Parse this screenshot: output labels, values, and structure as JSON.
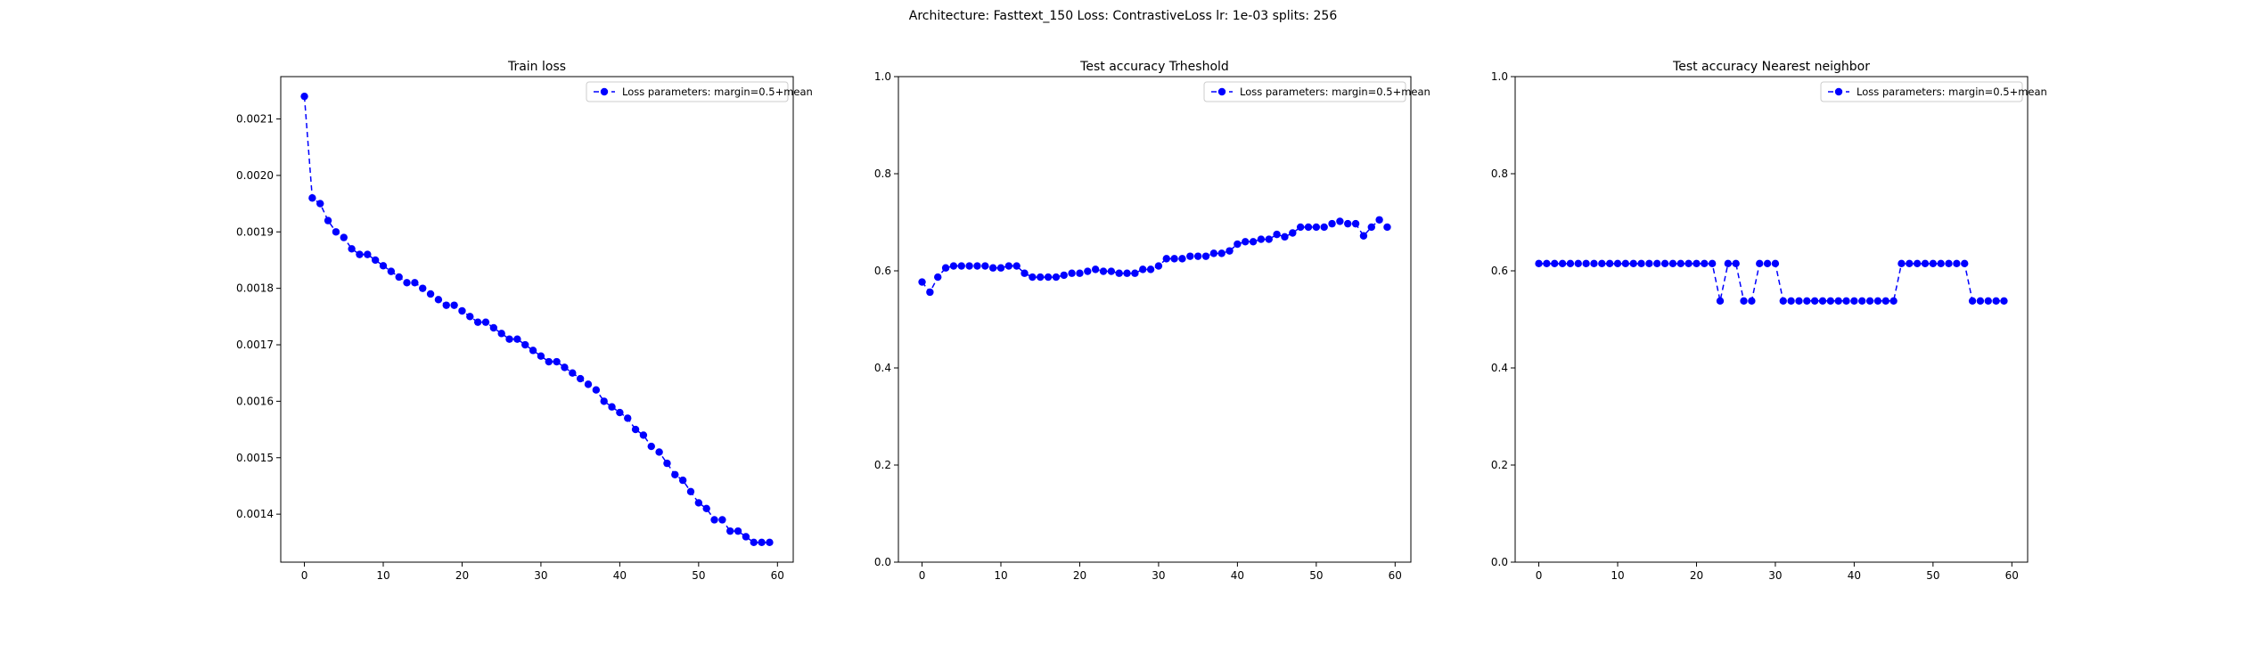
{
  "figure": {
    "suptitle": "Architecture: Fasttext_150 Loss: ContrastiveLoss lr: 1e-03 splits: 256"
  },
  "chart_data": [
    {
      "type": "line",
      "title": "Train loss",
      "xlabel": "",
      "ylabel": "",
      "xlim": [
        -3,
        62
      ],
      "ylim": [
        0.001315,
        0.002175
      ],
      "xticks": [
        0,
        10,
        20,
        30,
        40,
        50,
        60
      ],
      "yticks": [
        0.0014,
        0.0015,
        0.0016,
        0.0017,
        0.0018,
        0.0019,
        0.002,
        0.0021
      ],
      "ytick_labels": [
        "0.0014",
        "0.0015",
        "0.0016",
        "0.0017",
        "0.0018",
        "0.0019",
        "0.0020",
        "0.0021"
      ],
      "grid": false,
      "legend_position": "top-right",
      "series": [
        {
          "name": "Loss parameters: margin=0.5+mean",
          "color": "#0000ff",
          "linestyle": "dashed",
          "marker": "circle",
          "x": [
            0,
            1,
            2,
            3,
            4,
            5,
            6,
            7,
            8,
            9,
            10,
            11,
            12,
            13,
            14,
            15,
            16,
            17,
            18,
            19,
            20,
            21,
            22,
            23,
            24,
            25,
            26,
            27,
            28,
            29,
            30,
            31,
            32,
            33,
            34,
            35,
            36,
            37,
            38,
            39,
            40,
            41,
            42,
            43,
            44,
            45,
            46,
            47,
            48,
            49,
            50,
            51,
            52,
            53,
            54,
            55,
            56,
            57,
            58,
            59
          ],
          "values": [
            0.00214,
            0.00196,
            0.00195,
            0.00192,
            0.0019,
            0.00189,
            0.00187,
            0.00186,
            0.00186,
            0.00185,
            0.00184,
            0.00183,
            0.00182,
            0.00181,
            0.00181,
            0.0018,
            0.00179,
            0.00178,
            0.00177,
            0.00177,
            0.00176,
            0.00175,
            0.00174,
            0.00174,
            0.00173,
            0.00172,
            0.00171,
            0.00171,
            0.0017,
            0.00169,
            0.00168,
            0.00167,
            0.00167,
            0.00166,
            0.00165,
            0.00164,
            0.00163,
            0.00162,
            0.0016,
            0.00159,
            0.00158,
            0.00157,
            0.00155,
            0.00154,
            0.00152,
            0.00151,
            0.00149,
            0.00147,
            0.00146,
            0.00144,
            0.00142,
            0.00141,
            0.00139,
            0.00139,
            0.00137,
            0.00137,
            0.00136,
            0.00135,
            0.00135,
            0.00135
          ]
        }
      ]
    },
    {
      "type": "line",
      "title": "Test accuracy Trheshold",
      "xlabel": "",
      "ylabel": "",
      "xlim": [
        -3,
        62
      ],
      "ylim": [
        0.0,
        1.0
      ],
      "xticks": [
        0,
        10,
        20,
        30,
        40,
        50,
        60
      ],
      "yticks": [
        0.0,
        0.2,
        0.4,
        0.6,
        0.8,
        1.0
      ],
      "ytick_labels": [
        "0.0",
        "0.2",
        "0.4",
        "0.6",
        "0.8",
        "1.0"
      ],
      "grid": false,
      "legend_position": "top-right",
      "series": [
        {
          "name": "Loss parameters: margin=0.5+mean",
          "color": "#0000ff",
          "linestyle": "dashed",
          "marker": "circle",
          "x": [
            0,
            1,
            2,
            3,
            4,
            5,
            6,
            7,
            8,
            9,
            10,
            11,
            12,
            13,
            14,
            15,
            16,
            17,
            18,
            19,
            20,
            21,
            22,
            23,
            24,
            25,
            26,
            27,
            28,
            29,
            30,
            31,
            32,
            33,
            34,
            35,
            36,
            37,
            38,
            39,
            40,
            41,
            42,
            43,
            44,
            45,
            46,
            47,
            48,
            49,
            50,
            51,
            52,
            53,
            54,
            55,
            56,
            57,
            58,
            59
          ],
          "values": [
            0.577,
            0.556,
            0.587,
            0.606,
            0.61,
            0.61,
            0.61,
            0.61,
            0.61,
            0.606,
            0.606,
            0.61,
            0.61,
            0.595,
            0.587,
            0.587,
            0.587,
            0.587,
            0.591,
            0.595,
            0.595,
            0.599,
            0.603,
            0.599,
            0.599,
            0.595,
            0.595,
            0.595,
            0.603,
            0.603,
            0.61,
            0.625,
            0.625,
            0.625,
            0.63,
            0.63,
            0.63,
            0.636,
            0.636,
            0.641,
            0.655,
            0.66,
            0.66,
            0.665,
            0.665,
            0.675,
            0.67,
            0.678,
            0.69,
            0.69,
            0.69,
            0.69,
            0.697,
            0.702,
            0.697,
            0.697,
            0.672,
            0.69,
            0.705,
            0.69
          ]
        }
      ]
    },
    {
      "type": "line",
      "title": "Test accuracy Nearest neighbor",
      "xlabel": "",
      "ylabel": "",
      "xlim": [
        -3,
        62
      ],
      "ylim": [
        0.0,
        1.0
      ],
      "xticks": [
        0,
        10,
        20,
        30,
        40,
        50,
        60
      ],
      "yticks": [
        0.0,
        0.2,
        0.4,
        0.6,
        0.8,
        1.0
      ],
      "ytick_labels": [
        "0.0",
        "0.2",
        "0.4",
        "0.6",
        "0.8",
        "1.0"
      ],
      "grid": false,
      "legend_position": "top-right",
      "series": [
        {
          "name": "Loss parameters: margin=0.5+mean",
          "color": "#0000ff",
          "linestyle": "dashed",
          "marker": "circle",
          "x": [
            0,
            1,
            2,
            3,
            4,
            5,
            6,
            7,
            8,
            9,
            10,
            11,
            12,
            13,
            14,
            15,
            16,
            17,
            18,
            19,
            20,
            21,
            22,
            23,
            24,
            25,
            26,
            27,
            28,
            29,
            30,
            31,
            32,
            33,
            34,
            35,
            36,
            37,
            38,
            39,
            40,
            41,
            42,
            43,
            44,
            45,
            46,
            47,
            48,
            49,
            50,
            51,
            52,
            53,
            54,
            55,
            56,
            57,
            58,
            59
          ],
          "values": [
            0.615,
            0.615,
            0.615,
            0.615,
            0.615,
            0.615,
            0.615,
            0.615,
            0.615,
            0.615,
            0.615,
            0.615,
            0.615,
            0.615,
            0.615,
            0.615,
            0.615,
            0.615,
            0.615,
            0.615,
            0.615,
            0.615,
            0.615,
            0.538,
            0.615,
            0.615,
            0.538,
            0.538,
            0.615,
            0.615,
            0.615,
            0.538,
            0.538,
            0.538,
            0.538,
            0.538,
            0.538,
            0.538,
            0.538,
            0.538,
            0.538,
            0.538,
            0.538,
            0.538,
            0.538,
            0.538,
            0.615,
            0.615,
            0.615,
            0.615,
            0.615,
            0.615,
            0.615,
            0.615,
            0.615,
            0.538,
            0.538,
            0.538,
            0.538,
            0.538
          ]
        }
      ]
    }
  ]
}
